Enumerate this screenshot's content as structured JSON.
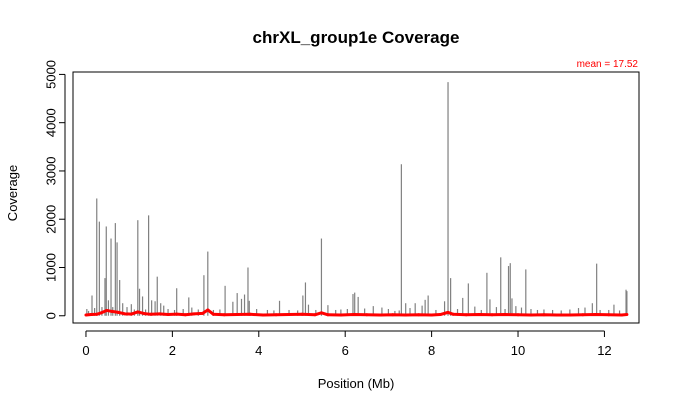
{
  "chart_data": {
    "type": "line",
    "title": "chrXL_group1e Coverage",
    "xlabel": "Position (Mb)",
    "ylabel": "Coverage",
    "xlim": [
      -0.3,
      12.8
    ],
    "ylim": [
      -150,
      5050
    ],
    "x_ticks": [
      0,
      2,
      4,
      6,
      8,
      10,
      12
    ],
    "y_ticks": [
      0,
      1000,
      2000,
      3000,
      4000,
      5000
    ],
    "grid": false,
    "annotation": {
      "text": "mean =  17.52",
      "mean_value": 17.52,
      "color": "#ff0000"
    },
    "series": [
      {
        "style": "raw-coverage-spikes",
        "color": "#808080",
        "x": [
          0.02,
          0.06,
          0.14,
          0.2,
          0.25,
          0.31,
          0.37,
          0.44,
          0.47,
          0.52,
          0.58,
          0.62,
          0.68,
          0.72,
          0.78,
          0.85,
          0.95,
          1.05,
          1.12,
          1.2,
          1.24,
          1.31,
          1.38,
          1.45,
          1.52,
          1.6,
          1.65,
          1.73,
          1.8,
          1.9,
          2.05,
          2.1,
          2.25,
          2.38,
          2.45,
          2.6,
          2.73,
          2.82,
          2.95,
          3.1,
          3.22,
          3.4,
          3.5,
          3.6,
          3.67,
          3.75,
          3.78,
          3.95,
          4.2,
          4.35,
          4.48,
          4.7,
          4.9,
          5.02,
          5.08,
          5.15,
          5.32,
          5.45,
          5.6,
          5.78,
          5.9,
          6.05,
          6.18,
          6.22,
          6.3,
          6.45,
          6.65,
          6.85,
          7.0,
          7.15,
          7.25,
          7.3,
          7.4,
          7.5,
          7.62,
          7.78,
          7.85,
          7.92,
          8.1,
          8.3,
          8.38,
          8.44,
          8.6,
          8.72,
          8.85,
          9.0,
          9.15,
          9.28,
          9.35,
          9.5,
          9.6,
          9.7,
          9.78,
          9.82,
          9.86,
          9.95,
          10.08,
          10.18,
          10.3,
          10.45,
          10.6,
          10.8,
          11.0,
          11.2,
          11.4,
          11.55,
          11.72,
          11.82,
          11.9,
          12.1,
          12.22,
          12.35,
          12.5,
          12.52
        ],
        "y": [
          140,
          100,
          420,
          160,
          2430,
          1950,
          180,
          780,
          1850,
          320,
          1600,
          180,
          1920,
          1520,
          740,
          260,
          180,
          240,
          130,
          1980,
          560,
          400,
          130,
          2080,
          320,
          300,
          810,
          260,
          210,
          140,
          120,
          570,
          140,
          380,
          170,
          130,
          840,
          1330,
          120,
          130,
          620,
          290,
          470,
          350,
          440,
          1000,
          310,
          140,
          120,
          110,
          310,
          120,
          110,
          420,
          690,
          230,
          120,
          1600,
          220,
          120,
          130,
          140,
          450,
          480,
          390,
          150,
          200,
          170,
          140,
          100,
          110,
          3140,
          260,
          160,
          260,
          210,
          330,
          420,
          120,
          300,
          4840,
          780,
          140,
          370,
          670,
          190,
          120,
          890,
          340,
          180,
          1210,
          140,
          1030,
          1090,
          360,
          200,
          170,
          960,
          140,
          120,
          130,
          120,
          110,
          130,
          160,
          170,
          260,
          1080,
          120,
          120,
          230,
          110,
          540,
          510
        ]
      },
      {
        "style": "smoothed-coverage",
        "color": "#ff0000",
        "x": [
          0.0,
          0.12,
          0.25,
          0.35,
          0.48,
          0.6,
          0.75,
          0.9,
          1.05,
          1.2,
          1.35,
          1.5,
          1.7,
          1.9,
          2.1,
          2.3,
          2.5,
          2.7,
          2.82,
          2.95,
          3.2,
          3.5,
          3.8,
          4.1,
          4.4,
          4.7,
          5.0,
          5.3,
          5.45,
          5.6,
          5.9,
          6.2,
          6.5,
          6.8,
          7.1,
          7.4,
          7.7,
          8.0,
          8.2,
          8.38,
          8.5,
          8.8,
          9.1,
          9.4,
          9.7,
          10.0,
          10.3,
          10.6,
          10.9,
          11.2,
          11.5,
          11.8,
          12.1,
          12.4,
          12.52
        ],
        "y": [
          15,
          25,
          30,
          60,
          110,
          90,
          70,
          40,
          35,
          80,
          45,
          30,
          40,
          25,
          35,
          20,
          40,
          50,
          120,
          30,
          20,
          25,
          30,
          15,
          20,
          25,
          30,
          20,
          60,
          20,
          15,
          25,
          20,
          15,
          20,
          15,
          20,
          15,
          25,
          70,
          30,
          20,
          25,
          20,
          25,
          20,
          15,
          20,
          15,
          15,
          20,
          25,
          20,
          15,
          25
        ]
      }
    ]
  }
}
